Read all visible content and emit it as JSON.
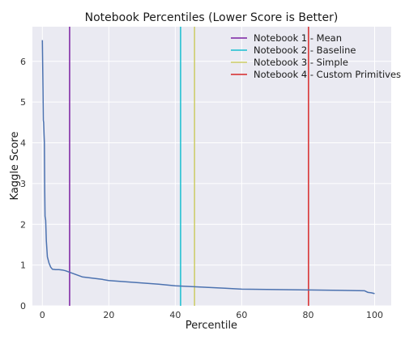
{
  "chart_data": {
    "type": "line",
    "title": "Notebook Percentiles (Lower Score is Better)",
    "xlabel": "Percentile",
    "ylabel": "Kaggle Score",
    "xlim": [
      -3,
      105
    ],
    "ylim": [
      0,
      6.85
    ],
    "xticks": [
      0,
      20,
      40,
      60,
      80,
      100
    ],
    "yticks": [
      0,
      1,
      2,
      3,
      4,
      5,
      6
    ],
    "grid": true,
    "legend_position": "top-right",
    "series": [
      {
        "color": "#4c72b0",
        "x": [
          0,
          0.1,
          0.2,
          0.3,
          0.4,
          0.5,
          0.6,
          0.7,
          0.8,
          1.0,
          1.2,
          1.5,
          2.0,
          2.5,
          3.0,
          4.0,
          5.0,
          6.0,
          7.0,
          8.0,
          9.0,
          10.0,
          12.0,
          15.0,
          18.0,
          20.0,
          25.0,
          30.0,
          35.0,
          40.0,
          45.0,
          50.0,
          55.0,
          60.0,
          70.0,
          80.0,
          90.0,
          97.0,
          98.0,
          99.0,
          100.0
        ],
        "y": [
          6.52,
          5.9,
          5.3,
          4.55,
          4.5,
          4.2,
          4.0,
          2.9,
          2.2,
          2.1,
          1.6,
          1.2,
          1.05,
          0.95,
          0.9,
          0.89,
          0.89,
          0.88,
          0.86,
          0.83,
          0.8,
          0.77,
          0.71,
          0.68,
          0.65,
          0.62,
          0.59,
          0.56,
          0.53,
          0.49,
          0.47,
          0.45,
          0.43,
          0.41,
          0.4,
          0.39,
          0.38,
          0.37,
          0.33,
          0.32,
          0.3
        ]
      }
    ],
    "vlines": [
      {
        "label": "Notebook 1 - Mean",
        "x": 8.2,
        "color": "#7b1fa2"
      },
      {
        "label": "Notebook 2 - Baseline",
        "x": 41.6,
        "color": "#17becf"
      },
      {
        "label": "Notebook 3 - Simple",
        "x": 45.8,
        "color": "#cccc66"
      },
      {
        "label": "Notebook 4 - Custom Primitives",
        "x": 80.1,
        "color": "#d62728"
      }
    ]
  }
}
